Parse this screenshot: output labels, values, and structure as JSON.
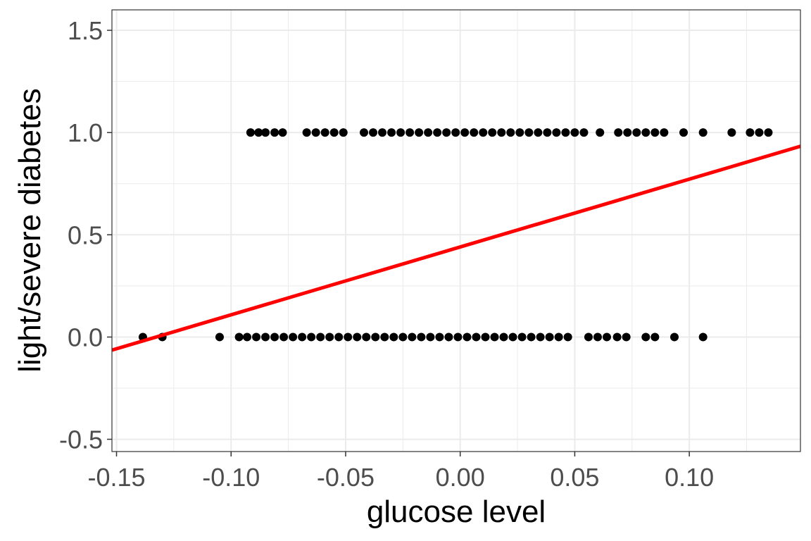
{
  "chart_data": {
    "type": "scatter",
    "title": "",
    "xlabel": "glucose level",
    "ylabel": "light/severe diabetes",
    "xlim": [
      -0.152,
      0.1485
    ],
    "ylim": [
      -0.56,
      1.6
    ],
    "x_ticks": [
      -0.15,
      -0.1,
      -0.05,
      0.0,
      0.05,
      0.1
    ],
    "x_tick_labels": [
      "-0.15",
      "-0.10",
      "-0.05",
      "0.00",
      "0.05",
      "0.10"
    ],
    "y_ticks": [
      -0.5,
      0.0,
      0.5,
      1.0,
      1.5
    ],
    "y_tick_labels": [
      "-0.5",
      "0.0",
      "0.5",
      "1.0",
      "1.5"
    ],
    "grid": true,
    "legend": "none",
    "colors": {
      "points": "#000000",
      "fit_line": "#ff0000",
      "grid": "#ebebeb",
      "panel_border": "#333333"
    },
    "series": [
      {
        "kind": "points",
        "values": [
          {
            "x": -0.0915,
            "y": 1
          },
          {
            "x": -0.088,
            "y": 1
          },
          {
            "x": -0.085,
            "y": 1
          },
          {
            "x": -0.081,
            "y": 1
          },
          {
            "x": -0.0775,
            "y": 1
          },
          {
            "x": -0.067,
            "y": 1
          },
          {
            "x": -0.063,
            "y": 1
          },
          {
            "x": -0.059,
            "y": 1
          },
          {
            "x": -0.055,
            "y": 1
          },
          {
            "x": -0.051,
            "y": 1
          },
          {
            "x": -0.042,
            "y": 1
          },
          {
            "x": -0.038,
            "y": 1
          },
          {
            "x": -0.034,
            "y": 1
          },
          {
            "x": -0.03,
            "y": 1
          },
          {
            "x": -0.026,
            "y": 1
          },
          {
            "x": -0.022,
            "y": 1
          },
          {
            "x": -0.018,
            "y": 1
          },
          {
            "x": -0.014,
            "y": 1
          },
          {
            "x": -0.01,
            "y": 1
          },
          {
            "x": -0.006,
            "y": 1
          },
          {
            "x": -0.002,
            "y": 1
          },
          {
            "x": 0.002,
            "y": 1
          },
          {
            "x": 0.006,
            "y": 1
          },
          {
            "x": 0.01,
            "y": 1
          },
          {
            "x": 0.014,
            "y": 1
          },
          {
            "x": 0.018,
            "y": 1
          },
          {
            "x": 0.022,
            "y": 1
          },
          {
            "x": 0.026,
            "y": 1
          },
          {
            "x": 0.03,
            "y": 1
          },
          {
            "x": 0.034,
            "y": 1
          },
          {
            "x": 0.038,
            "y": 1
          },
          {
            "x": 0.042,
            "y": 1
          },
          {
            "x": 0.046,
            "y": 1
          },
          {
            "x": 0.05,
            "y": 1
          },
          {
            "x": 0.054,
            "y": 1
          },
          {
            "x": 0.061,
            "y": 1
          },
          {
            "x": 0.069,
            "y": 1
          },
          {
            "x": 0.073,
            "y": 1
          },
          {
            "x": 0.077,
            "y": 1
          },
          {
            "x": 0.081,
            "y": 1
          },
          {
            "x": 0.085,
            "y": 1
          },
          {
            "x": 0.089,
            "y": 1
          },
          {
            "x": 0.0975,
            "y": 1
          },
          {
            "x": 0.106,
            "y": 1
          },
          {
            "x": 0.1185,
            "y": 1
          },
          {
            "x": 0.1265,
            "y": 1
          },
          {
            "x": 0.1305,
            "y": 1
          },
          {
            "x": 0.1345,
            "y": 1
          },
          {
            "x": -0.1385,
            "y": 0
          },
          {
            "x": -0.13,
            "y": 0
          },
          {
            "x": -0.105,
            "y": 0
          },
          {
            "x": -0.0965,
            "y": 0
          },
          {
            "x": -0.093,
            "y": 0
          },
          {
            "x": -0.089,
            "y": 0
          },
          {
            "x": -0.085,
            "y": 0
          },
          {
            "x": -0.081,
            "y": 0
          },
          {
            "x": -0.077,
            "y": 0
          },
          {
            "x": -0.073,
            "y": 0
          },
          {
            "x": -0.069,
            "y": 0
          },
          {
            "x": -0.065,
            "y": 0
          },
          {
            "x": -0.061,
            "y": 0
          },
          {
            "x": -0.057,
            "y": 0
          },
          {
            "x": -0.053,
            "y": 0
          },
          {
            "x": -0.049,
            "y": 0
          },
          {
            "x": -0.045,
            "y": 0
          },
          {
            "x": -0.041,
            "y": 0
          },
          {
            "x": -0.037,
            "y": 0
          },
          {
            "x": -0.033,
            "y": 0
          },
          {
            "x": -0.029,
            "y": 0
          },
          {
            "x": -0.025,
            "y": 0
          },
          {
            "x": -0.021,
            "y": 0
          },
          {
            "x": -0.017,
            "y": 0
          },
          {
            "x": -0.013,
            "y": 0
          },
          {
            "x": -0.009,
            "y": 0
          },
          {
            "x": -0.005,
            "y": 0
          },
          {
            "x": -0.001,
            "y": 0
          },
          {
            "x": 0.003,
            "y": 0
          },
          {
            "x": 0.007,
            "y": 0
          },
          {
            "x": 0.011,
            "y": 0
          },
          {
            "x": 0.015,
            "y": 0
          },
          {
            "x": 0.019,
            "y": 0
          },
          {
            "x": 0.023,
            "y": 0
          },
          {
            "x": 0.027,
            "y": 0
          },
          {
            "x": 0.031,
            "y": 0
          },
          {
            "x": 0.035,
            "y": 0
          },
          {
            "x": 0.039,
            "y": 0
          },
          {
            "x": 0.043,
            "y": 0
          },
          {
            "x": 0.047,
            "y": 0
          },
          {
            "x": 0.056,
            "y": 0
          },
          {
            "x": 0.06,
            "y": 0
          },
          {
            "x": 0.064,
            "y": 0
          },
          {
            "x": 0.0685,
            "y": 0
          },
          {
            "x": 0.0725,
            "y": 0
          },
          {
            "x": 0.081,
            "y": 0
          },
          {
            "x": 0.085,
            "y": 0
          },
          {
            "x": 0.0935,
            "y": 0
          },
          {
            "x": 0.106,
            "y": 0
          }
        ]
      },
      {
        "kind": "fit_line",
        "x": [
          -0.152,
          0.1485
        ],
        "y": [
          -0.064,
          0.933
        ]
      }
    ]
  }
}
